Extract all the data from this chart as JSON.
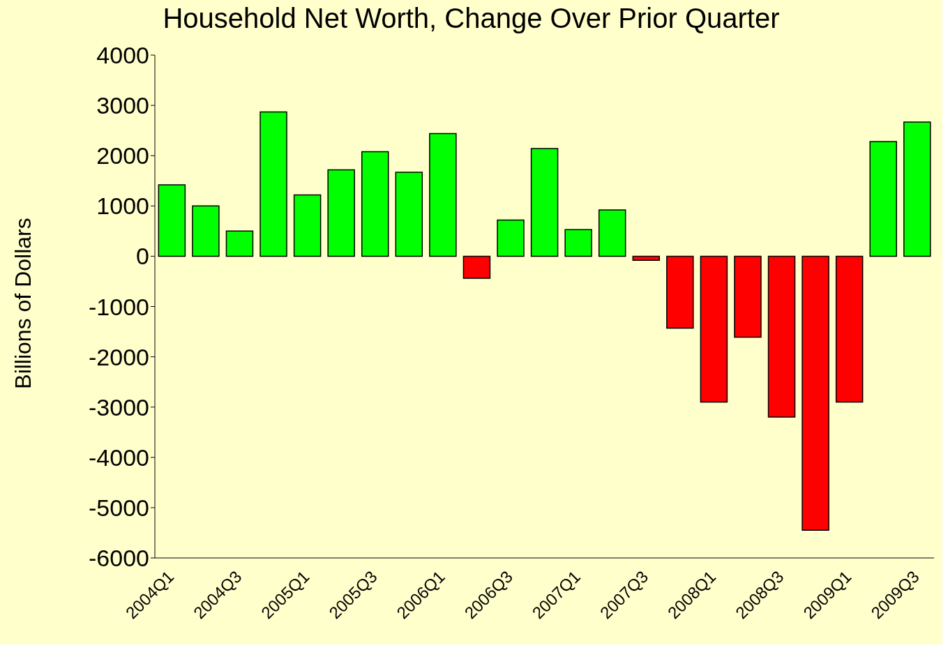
{
  "chart_data": {
    "type": "bar",
    "title": "Household Net Worth, Change Over Prior Quarter",
    "ylabel": "Billions of Dollars",
    "categories": [
      "2004Q1",
      null,
      "2004Q3",
      null,
      "2005Q1",
      null,
      "2005Q3",
      null,
      "2006Q1",
      null,
      "2006Q3",
      null,
      "2007Q1",
      null,
      "2007Q3",
      null,
      "2008Q1",
      null,
      "2008Q3",
      null,
      "2009Q1",
      null,
      "2009Q3"
    ],
    "values": [
      1420,
      1000,
      500,
      2870,
      1220,
      1720,
      2080,
      1670,
      2440,
      -440,
      720,
      2140,
      530,
      920,
      -80,
      -1430,
      -2900,
      -1610,
      -3200,
      -5450,
      -2900,
      2280,
      2670
    ],
    "colors": [
      "#00ff00",
      "#00ff00",
      "#00ff00",
      "#00ff00",
      "#00ff00",
      "#00ff00",
      "#00ff00",
      "#00ff00",
      "#00ff00",
      "#ff0000",
      "#00ff00",
      "#00ff00",
      "#00ff00",
      "#00ff00",
      "#ff0000",
      "#ff0000",
      "#ff0000",
      "#ff0000",
      "#ff0000",
      "#ff0000",
      "#ff0000",
      "#00ff00",
      "#00ff00"
    ],
    "ylim": [
      -6000,
      4000
    ],
    "yticks": [
      -6000,
      -5000,
      -4000,
      -3000,
      -2000,
      -1000,
      0,
      1000,
      2000,
      3000,
      4000
    ],
    "grid": false,
    "legend": false
  }
}
